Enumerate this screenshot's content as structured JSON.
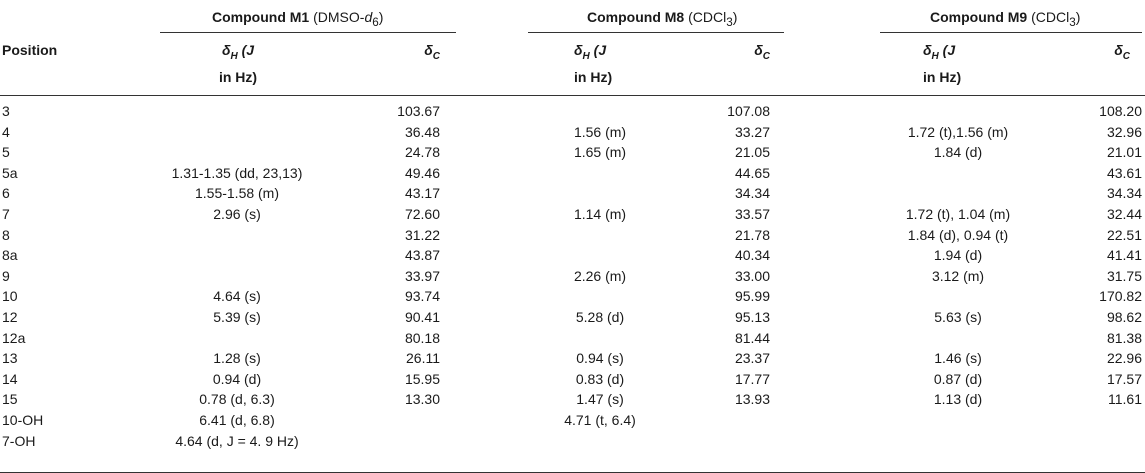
{
  "groups": [
    {
      "name": "Compound M1",
      "solvent_pre": "(DMSO-",
      "solvent_d": "d",
      "solvent_sub": "6",
      "solvent_post": ")"
    },
    {
      "name": "Compound M8",
      "solvent_pre": "(CDCl",
      "solvent_d": "",
      "solvent_sub": "3",
      "solvent_post": ")"
    },
    {
      "name": "Compound M9",
      "solvent_pre": "(CDCl",
      "solvent_d": "",
      "solvent_sub": "3",
      "solvent_post": ")"
    }
  ],
  "headers": {
    "position": "Position",
    "dh_symbol": "δ",
    "dh_sub": "H",
    "dh_j": "(J",
    "dh_line2": "in Hz)",
    "dc_symbol": "δ",
    "dc_sub": "C"
  },
  "rows": [
    {
      "pos": "3",
      "m1h": "",
      "m1c": "103.67",
      "m8h": "",
      "m8c": "107.08",
      "m9h": "",
      "m9c": "108.20"
    },
    {
      "pos": "4",
      "m1h": "",
      "m1c": "36.48",
      "m8h": "1.56 (m)",
      "m8c": "33.27",
      "m9h": "1.72 (t),1.56 (m)",
      "m9c": "32.96"
    },
    {
      "pos": "5",
      "m1h": "",
      "m1c": "24.78",
      "m8h": "1.65 (m)",
      "m8c": "21.05",
      "m9h": "1.84 (d)",
      "m9c": "21.01"
    },
    {
      "pos": "5a",
      "m1h": "1.31-1.35 (dd, 23,13)",
      "m1c": "49.46",
      "m8h": "",
      "m8c": "44.65",
      "m9h": "",
      "m9c": "43.61"
    },
    {
      "pos": "6",
      "m1h": "1.55-1.58 (m)",
      "m1c": "43.17",
      "m8h": "",
      "m8c": "34.34",
      "m9h": "",
      "m9c": "34.34"
    },
    {
      "pos": "7",
      "m1h": "2.96 (s)",
      "m1c": "72.60",
      "m8h": "1.14 (m)",
      "m8c": "33.57",
      "m9h": "1.72 (t), 1.04 (m)",
      "m9c": "32.44"
    },
    {
      "pos": "8",
      "m1h": "",
      "m1c": "31.22",
      "m8h": "",
      "m8c": "21.78",
      "m9h": "1.84 (d), 0.94 (t)",
      "m9c": "22.51"
    },
    {
      "pos": "8a",
      "m1h": "",
      "m1c": "43.87",
      "m8h": "",
      "m8c": "40.34",
      "m9h": "1.94 (d)",
      "m9c": "41.41"
    },
    {
      "pos": "9",
      "m1h": "",
      "m1c": "33.97",
      "m8h": "2.26 (m)",
      "m8c": "33.00",
      "m9h": "3.12 (m)",
      "m9c": "31.75"
    },
    {
      "pos": "10",
      "m1h": "4.64 (s)",
      "m1c": "93.74",
      "m8h": "",
      "m8c": "95.99",
      "m9h": "",
      "m9c": "170.82"
    },
    {
      "pos": "12",
      "m1h": "5.39 (s)",
      "m1c": "90.41",
      "m8h": "5.28 (d)",
      "m8c": "95.13",
      "m9h": "5.63 (s)",
      "m9c": "98.62"
    },
    {
      "pos": "12a",
      "m1h": "",
      "m1c": "80.18",
      "m8h": "",
      "m8c": "81.44",
      "m9h": "",
      "m9c": "81.38"
    },
    {
      "pos": "13",
      "m1h": "1.28 (s)",
      "m1c": "26.11",
      "m8h": "0.94 (s)",
      "m8c": "23.37",
      "m9h": "1.46 (s)",
      "m9c": "22.96"
    },
    {
      "pos": "14",
      "m1h": "0.94 (d)",
      "m1c": "15.95",
      "m8h": "0.83 (d)",
      "m8c": "17.77",
      "m9h": "0.87 (d)",
      "m9c": "17.57"
    },
    {
      "pos": "15",
      "m1h": "0.78 (d, 6.3)",
      "m1c": "13.30",
      "m8h": "1.47 (s)",
      "m8c": "13.93",
      "m9h": "1.13 (d)",
      "m9c": "11.61"
    },
    {
      "pos": "10-OH",
      "m1h": "6.41 (d, 6.8)",
      "m1c": "",
      "m8h": "4.71 (t, 6.4)",
      "m8c": "",
      "m9h": "",
      "m9c": ""
    },
    {
      "pos": "7-OH",
      "m1h": "4.64 (d, J = 4. 9 Hz)",
      "m1c": "",
      "m8h": "",
      "m8c": "",
      "m9h": "",
      "m9c": ""
    }
  ]
}
